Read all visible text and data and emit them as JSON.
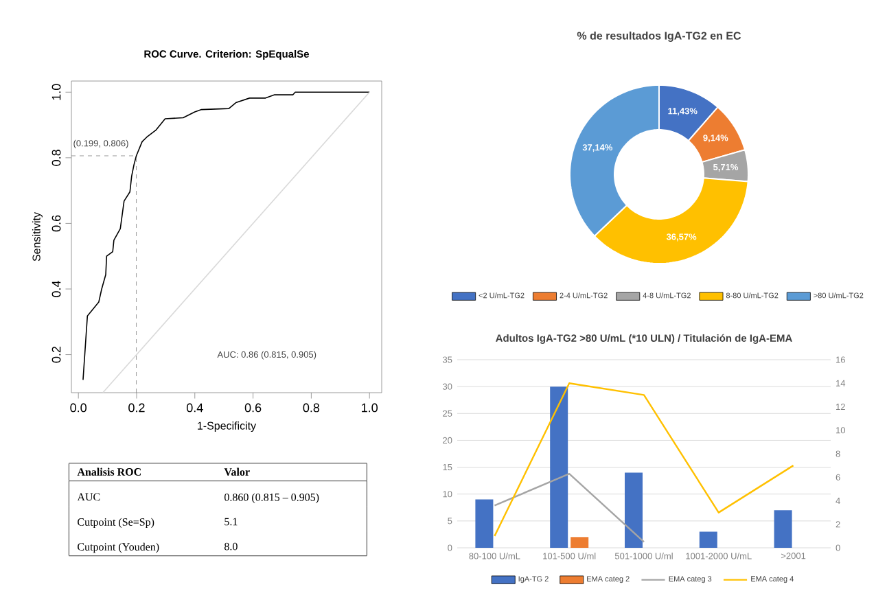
{
  "chart_data": [
    {
      "type": "line",
      "title": "ROC Curve. Criterion: SpEqualSe",
      "xlabel": "1-Specificity",
      "ylabel": "Sensitivity",
      "xlim": [
        -0.024,
        1.042
      ],
      "ylim": [
        0.084,
        1.034
      ],
      "xticks": [
        {
          "value": 0,
          "label": "0.0"
        },
        0.2,
        0.4,
        0.6,
        0.8,
        {
          "value": 1,
          "label": "1.0"
        }
      ],
      "yticks": [
        0.2,
        0.4,
        0.6,
        0.8,
        {
          "value": 1,
          "label": "1.0"
        }
      ],
      "marker": "none",
      "line_style": "solid",
      "series": [
        {
          "color": "#000000",
          "x": [
            0.016,
            0.031,
            0.07,
            0.08,
            0.094,
            0.097,
            0.118,
            0.122,
            0.144,
            0.157,
            0.177,
            0.183,
            0.191,
            0.199,
            0.219,
            0.235,
            0.266,
            0.298,
            0.36,
            0.4,
            0.423,
            0.517,
            0.541,
            0.588,
            0.643,
            0.674,
            0.737,
            0.745,
            1.0
          ],
          "values": [
            0.123,
            0.318,
            0.36,
            0.4,
            0.444,
            0.5,
            0.514,
            0.549,
            0.584,
            0.668,
            0.696,
            0.744,
            0.779,
            0.806,
            0.849,
            0.863,
            0.884,
            0.919,
            0.922,
            0.94,
            0.947,
            0.95,
            0.968,
            0.982,
            0.982,
            0.992,
            0.992,
            1.0,
            1.0
          ]
        },
        {
          "color": "#d9d9d9",
          "x": [
            0.084,
            1.0
          ],
          "values": [
            0.084,
            1.0
          ]
        }
      ],
      "ref_lines": [
        {
          "axis": "x",
          "value": 0.199,
          "color": "#808080",
          "line_style": "dashed"
        },
        {
          "axis": "y",
          "value": 0.806,
          "color": "#808080",
          "line_style": "dashed"
        }
      ],
      "annotations": [
        {
          "text": "(0.199, 0.806)",
          "x": 0.199,
          "y": 0.806
        },
        "AUC: 0.86 (0.815, 0.905)"
      ]
    },
    {
      "type": "donut",
      "title": "% de resultados IgA-TG2 en  EC",
      "categories": [
        "<2 U/mL-TG2",
        "2-4 U/mL-TG2",
        "4-8 U/mL-TG2",
        "8-80 U/mL-TG2",
        ">80 U/mL-TG2"
      ],
      "values": [
        11.43,
        9.14,
        5.71,
        36.57,
        37.14
      ],
      "colors": [
        "#4472c4",
        "#ed7d31",
        "#a5a5a5",
        "#ffc000",
        "#5b9bd5"
      ],
      "value_labels": [
        "11,43%",
        "9,14%",
        "5,71%",
        "36,57%",
        "37,14%"
      ],
      "legend": "bottom"
    },
    {
      "type": "other",
      "annotations": [
        "Analisis ROC",
        "Valor",
        "AUC",
        "0.860 (0.815 – 0.905)",
        "Cutpoint  (Se=Sp)",
        "5.1",
        "Cutpoint  (Youden)",
        "8.0"
      ]
    },
    {
      "type": "bar",
      "title": "Adultos IgA-TG2 >80 U/mL (*10 ULN) / Titulación de IgA-EMA",
      "categories": [
        "80-100 U/mL",
        "101-500 U/ml",
        "501-1000 U/ml",
        "1001-2000 U/mL",
        ">2001"
      ],
      "ylim": [
        0,
        35
      ],
      "yticks": [
        0,
        5,
        10,
        15,
        20,
        25,
        30,
        35
      ],
      "y2lim": [
        0,
        16
      ],
      "y2ticks": [
        0,
        2,
        4,
        6,
        8,
        10,
        12,
        14,
        16
      ],
      "grid": "y",
      "legend": "bottom",
      "series": [
        {
          "name": "IgA-TG 2",
          "color": "#4472c4",
          "values": [
            9,
            30,
            14,
            3,
            7
          ]
        },
        {
          "name": "EMA categ 2",
          "color": "#ed7d31",
          "values": [
            null,
            2,
            null,
            null,
            null
          ]
        },
        {
          "name": "EMA categ 3",
          "type": "line",
          "axis": "y2",
          "color": "#a5a5a5",
          "values": [
            3.6,
            6.3,
            0.5,
            null,
            null
          ]
        },
        {
          "name": "EMA categ 4",
          "type": "line",
          "axis": "y2",
          "color": "#ffc000",
          "values": [
            1,
            14,
            13,
            3,
            7
          ]
        }
      ]
    }
  ]
}
